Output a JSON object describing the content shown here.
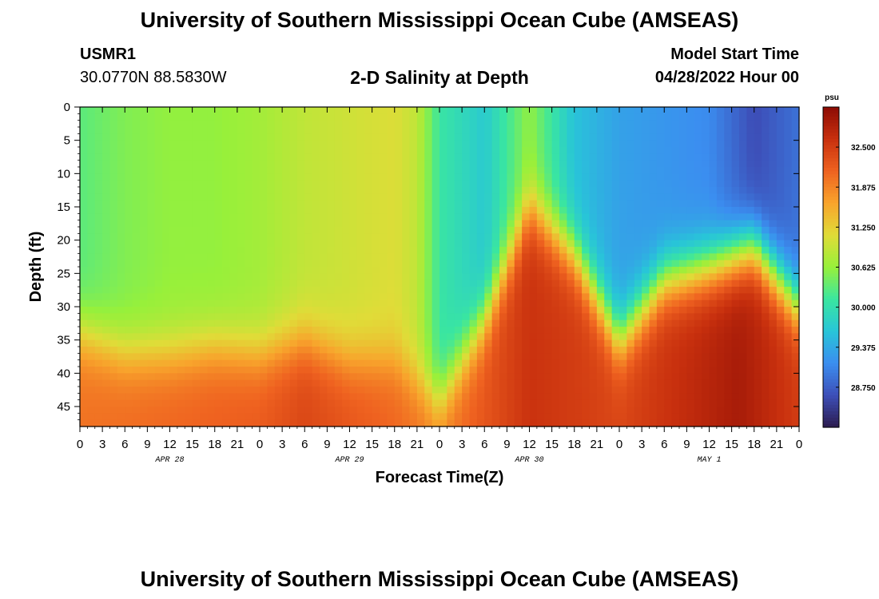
{
  "header": {
    "title": "University of Southern Mississippi Ocean Cube (AMSEAS)",
    "station_id": "USMR1",
    "station_coords": "30.0770N  88.5830W",
    "plot_title": "2-D Salinity at Depth",
    "model_start_label": "Model Start Time",
    "model_start_value": "04/28/2022 Hour 00"
  },
  "footer": {
    "title": "University of Southern Mississippi Ocean Cube (AMSEAS)"
  },
  "colors": {
    "scale": [
      "#2b1b4f",
      "#3d4fb8",
      "#3b8ef0",
      "#28c5d8",
      "#3ae6a0",
      "#98f03a",
      "#e0dc38",
      "#f8a42c",
      "#ef6220",
      "#c8300e",
      "#8c0b04"
    ]
  },
  "chart_data": {
    "type": "heatmap",
    "title": "2-D Salinity at Depth",
    "xlabel": "Forecast Time(Z)",
    "ylabel": "Depth (ft)",
    "x_hours_range": [
      0,
      96
    ],
    "x_tick_labels": [
      "0",
      "3",
      "6",
      "9",
      "12",
      "15",
      "18",
      "21",
      "0",
      "3",
      "6",
      "9",
      "12",
      "15",
      "18",
      "21",
      "0",
      "3",
      "6",
      "9",
      "12",
      "15",
      "18",
      "21",
      "0",
      "3",
      "6",
      "9",
      "12",
      "15",
      "18",
      "21",
      "0"
    ],
    "date_labels": [
      {
        "label": "APR 28",
        "hour": 12
      },
      {
        "label": "APR 29",
        "hour": 36
      },
      {
        "label": "APR 30",
        "hour": 60
      },
      {
        "label": "MAY 1",
        "hour": 84
      }
    ],
    "y_range": [
      0,
      48
    ],
    "y_ticks": [
      0,
      5,
      10,
      15,
      20,
      25,
      30,
      35,
      40,
      45
    ],
    "y_tick_labels": [
      "0",
      "5",
      "10",
      "15",
      "20",
      "25",
      "30",
      "35",
      "40",
      "45"
    ],
    "colorbar": {
      "unit": "psu",
      "min": 28.125,
      "max": 33.125,
      "labels": [
        "32.500",
        "31.875",
        "31.250",
        "30.625",
        "30.000",
        "29.375",
        "28.750"
      ],
      "values": [
        32.5,
        31.875,
        31.25,
        30.625,
        30.0,
        29.375,
        28.75
      ]
    },
    "surface_salinity_by_hour": [
      {
        "hour": 0,
        "value": 30.3
      },
      {
        "hour": 6,
        "value": 30.5
      },
      {
        "hour": 12,
        "value": 30.6
      },
      {
        "hour": 18,
        "value": 30.6
      },
      {
        "hour": 24,
        "value": 30.7
      },
      {
        "hour": 30,
        "value": 30.9
      },
      {
        "hour": 36,
        "value": 31.0
      },
      {
        "hour": 42,
        "value": 31.1
      },
      {
        "hour": 45,
        "value": 30.9
      },
      {
        "hour": 48,
        "value": 30.1
      },
      {
        "hour": 54,
        "value": 29.7
      },
      {
        "hour": 60,
        "value": 30.6
      },
      {
        "hour": 66,
        "value": 29.6
      },
      {
        "hour": 72,
        "value": 29.3
      },
      {
        "hour": 78,
        "value": 29.2
      },
      {
        "hour": 84,
        "value": 29.1
      },
      {
        "hour": 90,
        "value": 28.6
      },
      {
        "hour": 96,
        "value": 28.9
      }
    ],
    "halocline_depth_ft_by_hour": [
      {
        "hour": 0,
        "value": 34
      },
      {
        "hour": 6,
        "value": 37
      },
      {
        "hour": 12,
        "value": 37
      },
      {
        "hour": 18,
        "value": 36
      },
      {
        "hour": 24,
        "value": 37
      },
      {
        "hour": 30,
        "value": 35
      },
      {
        "hour": 36,
        "value": 38
      },
      {
        "hour": 42,
        "value": 38
      },
      {
        "hour": 48,
        "value": 44
      },
      {
        "hour": 54,
        "value": 32
      },
      {
        "hour": 60,
        "value": 15
      },
      {
        "hour": 66,
        "value": 22
      },
      {
        "hour": 72,
        "value": 35
      },
      {
        "hour": 78,
        "value": 26
      },
      {
        "hour": 84,
        "value": 24
      },
      {
        "hour": 90,
        "value": 21
      },
      {
        "hour": 96,
        "value": 30
      }
    ],
    "bottom_salinity_by_hour": [
      {
        "hour": 0,
        "value": 32.0
      },
      {
        "hour": 12,
        "value": 32.1
      },
      {
        "hour": 24,
        "value": 32.2
      },
      {
        "hour": 30,
        "value": 32.4
      },
      {
        "hour": 42,
        "value": 32.1
      },
      {
        "hour": 48,
        "value": 31.9
      },
      {
        "hour": 60,
        "value": 32.6
      },
      {
        "hour": 72,
        "value": 32.4
      },
      {
        "hour": 88,
        "value": 32.9
      },
      {
        "hour": 96,
        "value": 32.5
      }
    ]
  }
}
